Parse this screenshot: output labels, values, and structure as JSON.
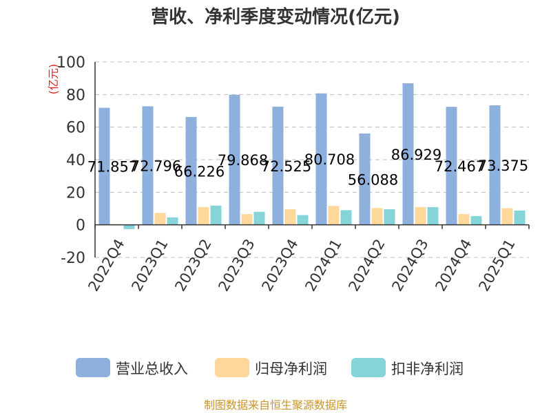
{
  "chart_data": {
    "type": "bar",
    "title": "营收、净利季度变动情况(亿元)",
    "ylabel": "(亿元)",
    "categories": [
      "2022Q4",
      "2023Q1",
      "2023Q2",
      "2023Q3",
      "2023Q4",
      "2024Q1",
      "2024Q2",
      "2024Q3",
      "2024Q4",
      "2025Q1"
    ],
    "ylim": [
      -20,
      100
    ],
    "yticks": [
      -20,
      0,
      20,
      40,
      60,
      80,
      100
    ],
    "grid": true,
    "legend_position": "bottom",
    "series": [
      {
        "name": "营业总收入",
        "color": "#8eb0dd",
        "values": [
          71.857,
          72.796,
          66.226,
          79.868,
          72.525,
          80.708,
          56.088,
          86.929,
          72.467,
          73.375
        ],
        "labels": [
          "71.857",
          "72.796",
          "66.226",
          "79.868",
          "72.525",
          "80.708",
          "56.088",
          "86.929",
          "72.467",
          "73.375"
        ]
      },
      {
        "name": "归母净利润",
        "color": "#fed79b",
        "values": [
          0.5,
          7.3,
          10.9,
          6.6,
          9.6,
          11.6,
          10.3,
          10.9,
          6.6,
          10.2
        ]
      },
      {
        "name": "扣非净利润",
        "color": "#85d5d8",
        "values": [
          -2.6,
          4.6,
          11.8,
          8.0,
          6.0,
          9.0,
          9.6,
          10.9,
          5.4,
          8.8
        ]
      }
    ]
  },
  "source": "制图数据来自恒生聚源数据库"
}
